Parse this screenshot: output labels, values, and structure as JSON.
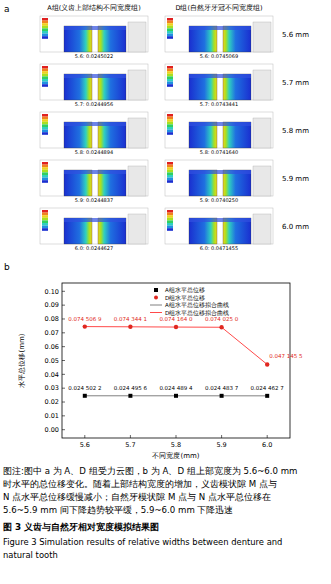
{
  "panel_a": {
    "label": "a",
    "headers": [
      "A组(义齿上部结构不同宽度组)",
      "D组(自然牙牙冠不同宽度组)"
    ],
    "rows": [
      {
        "label": "5.6 mm",
        "captions": [
          "5.6: 0.0245022",
          "5.6: 0.0745069"
        ]
      },
      {
        "label": "5.7 mm",
        "captions": [
          "5.7: 0.0244956",
          "5.7: 0.0743441"
        ]
      },
      {
        "label": "5.8 mm",
        "captions": [
          "5.8: 0.0244894",
          "5.8: 0.0741640"
        ]
      },
      {
        "label": "5.9 mm",
        "captions": [
          "5.9: 0.0244837",
          "5.9: 0.0740250"
        ]
      },
      {
        "label": "6.0 mm",
        "captions": [
          "6.0: 0.0244627",
          "6.0: 0.0471455"
        ]
      }
    ]
  },
  "panel_b": {
    "label": "b"
  },
  "chart_data": {
    "type": "scatter",
    "x_label": "不同宽度(mm)",
    "y_label": "水平总位移(mm)",
    "x": [
      5.6,
      5.7,
      5.8,
      5.9,
      6.0
    ],
    "xlim": [
      5.55,
      6.05
    ],
    "xticks": [
      5.6,
      5.7,
      5.8,
      5.9,
      {
        "value": 6.0,
        "label": "6.0"
      }
    ],
    "ylim": [
      -0.006,
      0.106
    ],
    "yticks": [
      {
        "value": 0,
        "label": "0.00"
      },
      0.01,
      0.02,
      0.03,
      0.04,
      0.05,
      0.06,
      0.07,
      0.08,
      0.09,
      {
        "value": 0.1,
        "label": "0.10"
      }
    ],
    "legend": "top",
    "data_labels": true,
    "series": [
      {
        "name": "A组水平总位移",
        "type": "scatter",
        "marker": "square",
        "color": "#000000",
        "values": [
          0.0245022,
          0.0244956,
          0.0244894,
          0.0244837,
          0.0244627
        ],
        "value_labels": [
          "0.024 502 2",
          "0.024 495 6",
          "0.024 489 4",
          "0.024 483 7",
          "0.024 462 7"
        ]
      },
      {
        "name": "D组水平总位移",
        "type": "scatter",
        "marker": "circle",
        "color": "#e02820",
        "values": [
          0.0745069,
          0.0743441,
          0.074164,
          0.074025,
          0.0471455
        ],
        "value_labels": [
          "0.074 506 9",
          "0.074 344 1",
          "0.074 164 0",
          "0.074 025 0",
          "0.047 145 5"
        ]
      },
      {
        "name": "A组水平总位移拟合曲线",
        "type": "line",
        "line_style": "solid",
        "color": "#808080",
        "values": [
          0.0245022,
          0.0244956,
          0.0244894,
          0.0244837,
          0.0244627
        ]
      },
      {
        "name": "D组水平总位移拟合曲线",
        "type": "line",
        "line_style": "solid",
        "color": "#ff4a4a",
        "values": [
          0.0745069,
          0.0743441,
          0.074164,
          0.074025,
          0.0471455
        ]
      }
    ]
  },
  "caption": {
    "lines": [
      "图注:图中 a 为 A、D 组受力云图，b 为 A、D 组上部宽度为 5.6~6.0 mm",
      "时水平的总位移变化。随着上部结构宽度的增加，义齿模状隙 M 点与",
      "N 点水平总位移缓慢减小；自然牙模状隙 M 点与 N 点水平总位移在",
      "5.6~5.9 mm 间下降趋势较平缓，5.9~6.0 mm 下降迅速"
    ],
    "title": "图 3   义齿与自然牙相对宽度模拟结果图",
    "title_en": [
      "Figure 3   Simulation results of relative widths between denture and",
      "natural tooth"
    ]
  }
}
